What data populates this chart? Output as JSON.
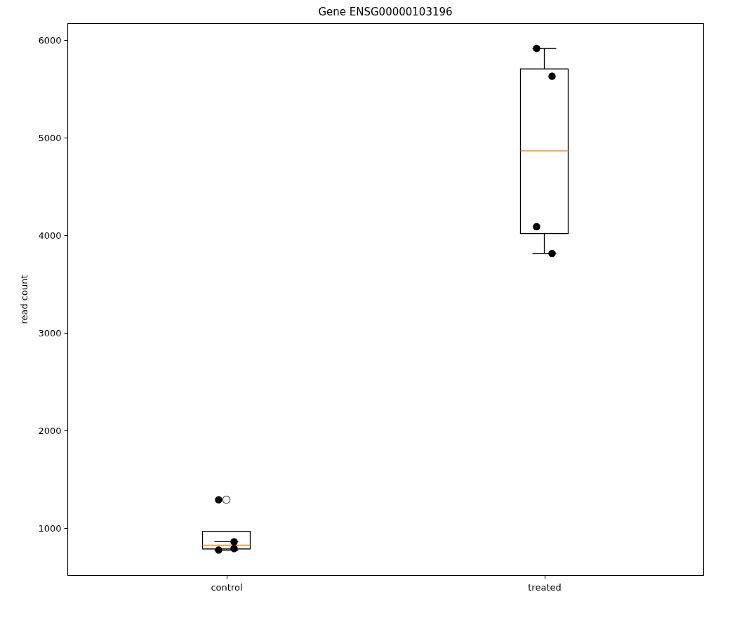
{
  "chart_data": {
    "type": "box",
    "title": "Gene ENSG00000103196",
    "ylabel": "read count",
    "categories": [
      "control",
      "treated"
    ],
    "boxes": [
      {
        "low": 775,
        "q1": 786,
        "median": 825,
        "q3": 967,
        "high": 860,
        "outliers": [
          1290
        ]
      },
      {
        "low": 3813,
        "q1": 4017,
        "median": 4865,
        "q3": 5705,
        "high": 5914
      }
    ],
    "series": [
      {
        "type": "scatter",
        "color": "#000000",
        "x": [
          "control",
          "control",
          "control",
          "control",
          "treated",
          "treated",
          "treated",
          "treated"
        ],
        "values": [
          1290,
          860,
          775,
          790,
          5914,
          5630,
          4088,
          3813
        ]
      }
    ],
    "ylim": [
      518,
      6173
    ],
    "yticks": [
      1000,
      2000,
      3000,
      4000,
      5000,
      6000
    ],
    "grid": false,
    "marker": "circle"
  }
}
